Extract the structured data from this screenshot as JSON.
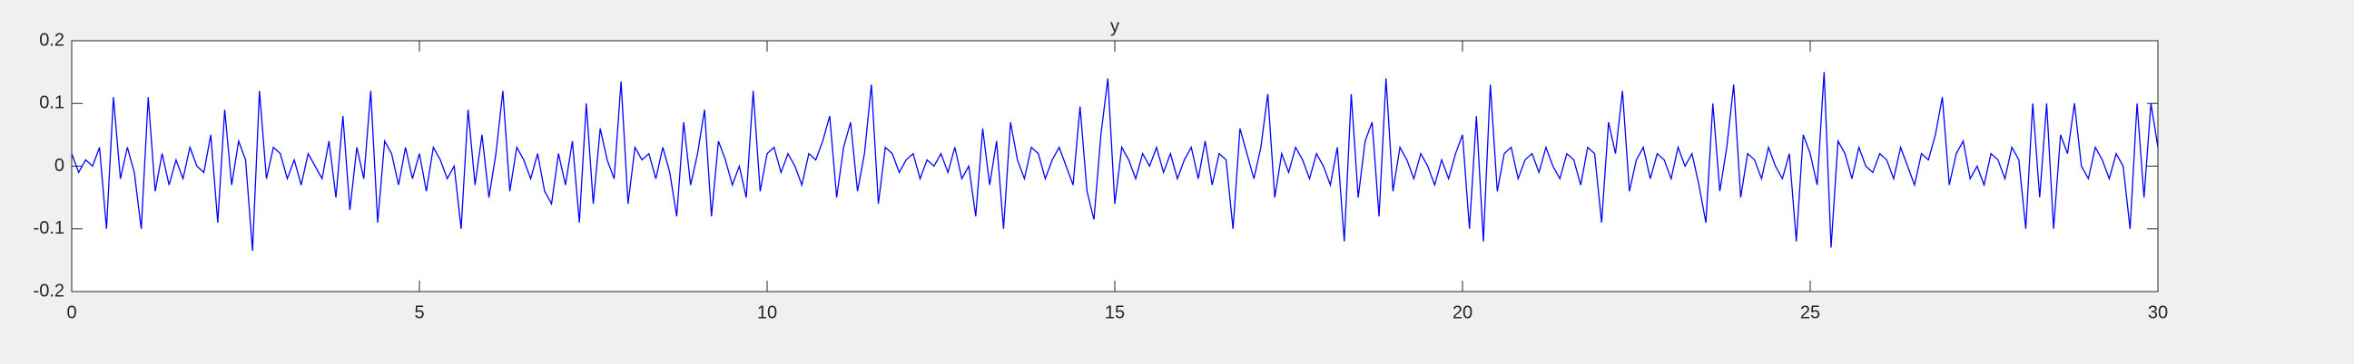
{
  "chart_data": {
    "type": "line",
    "title": "y",
    "x": [
      0,
      0.1,
      0.2,
      0.3,
      0.4,
      0.5,
      0.6,
      0.7,
      0.8,
      0.9,
      1,
      1.1,
      1.2,
      1.3,
      1.4,
      1.5,
      1.6,
      1.7,
      1.8,
      1.9,
      2,
      2.1,
      2.2,
      2.3,
      2.4,
      2.5,
      2.6,
      2.7,
      2.8,
      2.9,
      3,
      3.1,
      3.2,
      3.3,
      3.4,
      3.5,
      3.6,
      3.7,
      3.8,
      3.9,
      4,
      4.1,
      4.2,
      4.3,
      4.4,
      4.5,
      4.6,
      4.7,
      4.8,
      4.9,
      5,
      5.1,
      5.2,
      5.3,
      5.4,
      5.5,
      5.6,
      5.7,
      5.8,
      5.9,
      6,
      6.1,
      6.2,
      6.3,
      6.4,
      6.5,
      6.6,
      6.7,
      6.8,
      6.9,
      7,
      7.1,
      7.2,
      7.3,
      7.4,
      7.5,
      7.6,
      7.7,
      7.8,
      7.9,
      8,
      8.1,
      8.2,
      8.3,
      8.4,
      8.5,
      8.6,
      8.7,
      8.8,
      8.9,
      9,
      9.1,
      9.2,
      9.3,
      9.4,
      9.5,
      9.6,
      9.7,
      9.8,
      9.9,
      10,
      10.1,
      10.2,
      10.3,
      10.4,
      10.5,
      10.6,
      10.7,
      10.8,
      10.9,
      11,
      11.1,
      11.2,
      11.3,
      11.4,
      11.5,
      11.6,
      11.7,
      11.8,
      11.9,
      12,
      12.1,
      12.2,
      12.3,
      12.4,
      12.5,
      12.6,
      12.7,
      12.8,
      12.9,
      13,
      13.1,
      13.2,
      13.3,
      13.4,
      13.5,
      13.6,
      13.7,
      13.8,
      13.9,
      14,
      14.1,
      14.2,
      14.3,
      14.4,
      14.5,
      14.6,
      14.7,
      14.8,
      14.9,
      15,
      15.1,
      15.2,
      15.3,
      15.4,
      15.5,
      15.6,
      15.7,
      15.8,
      15.9,
      16,
      16.1,
      16.2,
      16.3,
      16.4,
      16.5,
      16.6,
      16.7,
      16.8,
      16.9,
      17,
      17.1,
      17.2,
      17.3,
      17.4,
      17.5,
      17.6,
      17.7,
      17.8,
      17.9,
      18,
      18.1,
      18.2,
      18.3,
      18.4,
      18.5,
      18.6,
      18.7,
      18.8,
      18.9,
      19,
      19.1,
      19.2,
      19.3,
      19.4,
      19.5,
      19.6,
      19.7,
      19.8,
      19.9,
      20,
      20.1,
      20.2,
      20.3,
      20.4,
      20.5,
      20.6,
      20.7,
      20.8,
      20.9,
      21,
      21.1,
      21.2,
      21.3,
      21.4,
      21.5,
      21.6,
      21.7,
      21.8,
      21.9,
      22,
      22.1,
      22.2,
      22.3,
      22.4,
      22.5,
      22.6,
      22.7,
      22.8,
      22.9,
      23,
      23.1,
      23.2,
      23.3,
      23.4,
      23.5,
      23.6,
      23.7,
      23.8,
      23.9,
      24,
      24.1,
      24.2,
      24.3,
      24.4,
      24.5,
      24.6,
      24.7,
      24.8,
      24.9,
      25,
      25.1,
      25.2,
      25.3,
      25.4,
      25.5,
      25.6,
      25.7,
      25.8,
      25.9,
      26,
      26.1,
      26.2,
      26.3,
      26.4,
      26.5,
      26.6,
      26.7,
      26.8,
      26.9,
      27,
      27.1,
      27.2,
      27.3,
      27.4,
      27.5,
      27.6,
      27.7,
      27.8,
      27.9,
      28,
      28.1,
      28.2,
      28.3,
      28.4,
      28.5,
      28.6,
      28.7,
      28.8,
      28.9,
      29,
      29.1,
      29.2,
      29.3,
      29.4,
      29.5,
      29.6,
      29.7,
      29.8,
      29.9,
      30
    ],
    "series": [
      {
        "color": "#0000ff",
        "values": [
          0.02,
          -0.01,
          0.01,
          0.0,
          0.03,
          -0.1,
          0.11,
          -0.02,
          0.03,
          -0.01,
          -0.1,
          0.11,
          -0.04,
          0.02,
          -0.03,
          0.01,
          -0.02,
          0.03,
          0.0,
          -0.01,
          0.05,
          -0.09,
          0.09,
          -0.03,
          0.04,
          0.01,
          -0.135,
          0.12,
          -0.02,
          0.03,
          0.02,
          -0.02,
          0.01,
          -0.03,
          0.02,
          0.0,
          -0.02,
          0.04,
          -0.05,
          0.08,
          -0.07,
          0.03,
          -0.02,
          0.12,
          -0.09,
          0.04,
          0.02,
          -0.03,
          0.03,
          -0.02,
          0.02,
          -0.04,
          0.03,
          0.01,
          -0.02,
          0.0,
          -0.1,
          0.09,
          -0.03,
          0.05,
          -0.05,
          0.02,
          0.12,
          -0.04,
          0.03,
          0.01,
          -0.02,
          0.02,
          -0.04,
          -0.06,
          0.02,
          -0.03,
          0.04,
          -0.09,
          0.1,
          -0.06,
          0.06,
          0.01,
          -0.02,
          0.135,
          -0.06,
          0.03,
          0.01,
          0.02,
          -0.02,
          0.03,
          -0.01,
          -0.08,
          0.07,
          -0.03,
          0.02,
          0.09,
          -0.08,
          0.04,
          0.01,
          -0.03,
          0.0,
          -0.05,
          0.12,
          -0.04,
          0.02,
          0.03,
          -0.01,
          0.02,
          0.0,
          -0.03,
          0.02,
          0.01,
          0.04,
          0.08,
          -0.05,
          0.03,
          0.07,
          -0.04,
          0.02,
          0.13,
          -0.06,
          0.03,
          0.02,
          -0.01,
          0.01,
          0.02,
          -0.02,
          0.01,
          0.0,
          0.02,
          -0.01,
          0.03,
          -0.02,
          0.0,
          -0.08,
          0.06,
          -0.03,
          0.04,
          -0.1,
          0.07,
          0.01,
          -0.02,
          0.03,
          0.02,
          -0.02,
          0.01,
          0.03,
          0.0,
          -0.03,
          0.095,
          -0.04,
          -0.085,
          0.05,
          0.14,
          -0.06,
          0.03,
          0.01,
          -0.02,
          0.02,
          0.0,
          0.03,
          -0.01,
          0.02,
          -0.02,
          0.01,
          0.03,
          -0.02,
          0.04,
          -0.03,
          0.02,
          0.01,
          -0.1,
          0.06,
          0.02,
          -0.02,
          0.03,
          0.115,
          -0.05,
          0.02,
          -0.01,
          0.03,
          0.01,
          -0.02,
          0.02,
          0.0,
          -0.03,
          0.03,
          -0.12,
          0.115,
          -0.05,
          0.04,
          0.07,
          -0.08,
          0.14,
          -0.04,
          0.03,
          0.01,
          -0.02,
          0.02,
          0.0,
          -0.03,
          0.01,
          -0.02,
          0.02,
          0.05,
          -0.1,
          0.08,
          -0.12,
          0.13,
          -0.04,
          0.02,
          0.03,
          -0.02,
          0.01,
          0.02,
          -0.01,
          0.03,
          0.0,
          -0.02,
          0.02,
          0.01,
          -0.03,
          0.03,
          0.02,
          -0.09,
          0.07,
          0.02,
          0.12,
          -0.04,
          0.01,
          0.03,
          -0.02,
          0.02,
          0.01,
          -0.02,
          0.03,
          0.0,
          0.02,
          -0.03,
          -0.09,
          0.1,
          -0.04,
          0.03,
          0.13,
          -0.05,
          0.02,
          0.01,
          -0.02,
          0.03,
          0.0,
          -0.02,
          0.02,
          -0.12,
          0.05,
          0.02,
          -0.03,
          0.15,
          -0.13,
          0.04,
          0.02,
          -0.02,
          0.03,
          0.0,
          -0.01,
          0.02,
          0.01,
          -0.02,
          0.03,
          0.0,
          -0.03,
          0.02,
          0.01,
          0.05,
          0.11,
          -0.03,
          0.02,
          0.04,
          -0.02,
          0.0,
          -0.03,
          0.02,
          0.01,
          -0.02,
          0.03,
          0.01,
          -0.1,
          0.1,
          -0.05,
          0.1,
          -0.1,
          0.05,
          0.02,
          0.1,
          0.0,
          -0.02,
          0.03,
          0.01,
          -0.02,
          0.02,
          0.0,
          -0.1,
          0.1,
          -0.05,
          0.1,
          0.03
        ]
      }
    ],
    "xlim": [
      0,
      30
    ],
    "xticks": [
      0,
      5,
      10,
      15,
      20,
      25,
      30
    ],
    "ylim": [
      -0.2,
      0.2
    ],
    "yticks": [
      -0.2,
      -0.1,
      0,
      0.1,
      0.2
    ]
  }
}
